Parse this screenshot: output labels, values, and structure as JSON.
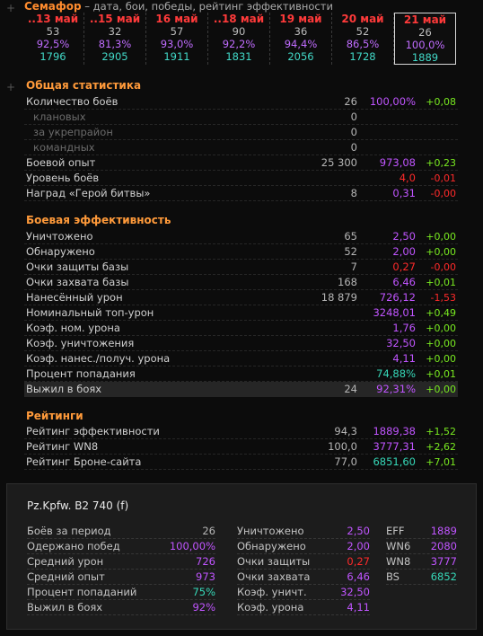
{
  "semafor": {
    "title": "Семафор",
    "desc": " – дата, бои, победы, рейтинг эффективности",
    "days": [
      {
        "date": "..13 май",
        "battles": "53",
        "wins": "92,5%",
        "eff": "1796"
      },
      {
        "date": "..15 май",
        "battles": "32",
        "wins": "81,3%",
        "eff": "2905"
      },
      {
        "date": "16 май",
        "battles": "57",
        "wins": "93,0%",
        "eff": "1911"
      },
      {
        "date": "..18 май",
        "battles": "90",
        "wins": "92,2%",
        "eff": "1831"
      },
      {
        "date": "19 май",
        "battles": "36",
        "wins": "94,4%",
        "eff": "2056"
      },
      {
        "date": "20 май",
        "battles": "52",
        "wins": "86,5%",
        "eff": "1728"
      },
      {
        "date": "21 май",
        "battles": "26",
        "wins": "100,0%",
        "eff": "1889"
      }
    ]
  },
  "general": {
    "title": "Общая статистика",
    "rows": [
      {
        "label": "Количество боёв",
        "value": "26",
        "avg": "100,00%",
        "avg_color": "purple",
        "delta": "+0,08",
        "delta_color": "green"
      },
      {
        "label": "клановых",
        "value": "0",
        "avg": "",
        "delta": "",
        "sub": true
      },
      {
        "label": "за укрепрайон",
        "value": "0",
        "avg": "",
        "delta": "",
        "sub": true
      },
      {
        "label": "командных",
        "value": "0",
        "avg": "",
        "delta": "",
        "sub": true
      },
      {
        "label": "Боевой опыт",
        "value": "25 300",
        "avg": "973,08",
        "avg_color": "purple",
        "delta": "+0,23",
        "delta_color": "green"
      },
      {
        "label": "Уровень боёв",
        "value": "",
        "avg": "4,0",
        "avg_color": "red",
        "delta": "-0,01",
        "delta_color": "red"
      },
      {
        "label": "Наград «Герой битвы»",
        "value": "8",
        "avg": "0,31",
        "avg_color": "purple",
        "delta": "-0,00",
        "delta_color": "red"
      }
    ]
  },
  "combat": {
    "title": "Боевая эффективность",
    "rows": [
      {
        "label": "Уничтожено",
        "value": "65",
        "avg": "2,50",
        "avg_color": "purple",
        "delta": "+0,00",
        "delta_color": "green"
      },
      {
        "label": "Обнаружено",
        "value": "52",
        "avg": "2,00",
        "avg_color": "purple",
        "delta": "+0,00",
        "delta_color": "green"
      },
      {
        "label": "Очки защиты базы",
        "value": "7",
        "avg": "0,27",
        "avg_color": "red",
        "delta": "-0,00",
        "delta_color": "red"
      },
      {
        "label": "Очки захвата базы",
        "value": "168",
        "avg": "6,46",
        "avg_color": "purple",
        "delta": "+0,01",
        "delta_color": "green"
      },
      {
        "label": "Нанесённый урон",
        "value": "18 879",
        "avg": "726,12",
        "avg_color": "purple",
        "delta": "-1,53",
        "delta_color": "red"
      },
      {
        "label": "Номинальный топ-урон",
        "value": "",
        "avg": "3248,01",
        "avg_color": "purple",
        "delta": "+0,49",
        "delta_color": "green"
      },
      {
        "label": "Коэф. ном. урона",
        "value": "",
        "avg": "1,76",
        "avg_color": "purple",
        "delta": "+0,00",
        "delta_color": "green"
      },
      {
        "label": "Коэф. уничтожения",
        "value": "",
        "avg": "32,50",
        "avg_color": "purple",
        "delta": "+0,00",
        "delta_color": "green"
      },
      {
        "label": "Коэф. нанес./получ. урона",
        "value": "",
        "avg": "4,11",
        "avg_color": "purple",
        "delta": "+0,00",
        "delta_color": "green"
      },
      {
        "label": "Процент попадания",
        "value": "",
        "avg": "74,88%",
        "avg_color": "teal",
        "delta": "+0,01",
        "delta_color": "green"
      },
      {
        "label": "Выжил в боях",
        "value": "24",
        "avg": "92,31%",
        "avg_color": "purple",
        "delta": "+0,00",
        "delta_color": "green",
        "hl": true
      }
    ]
  },
  "ratings": {
    "title": "Рейтинги",
    "rows": [
      {
        "label": "Рейтинг эффективности",
        "value": "94,3",
        "avg": "1889,38",
        "avg_color": "purple",
        "delta": "+1,52",
        "delta_color": "green"
      },
      {
        "label": "Рейтинг WN8",
        "value": "100,0",
        "avg": "3777,31",
        "avg_color": "purple",
        "delta": "+2,62",
        "delta_color": "green"
      },
      {
        "label": "Рейтинг Броне-сайта",
        "value": "77,0",
        "avg": "6851,60",
        "avg_color": "teal",
        "delta": "+7,01",
        "delta_color": "green"
      }
    ]
  },
  "tank": {
    "name": "Pz.Kpfw. B2 740 (f)",
    "col1": [
      {
        "label": "Боёв за период",
        "value": "26",
        "color": "gray"
      },
      {
        "label": "Одержано побед",
        "value": "100,00%",
        "color": "purple"
      },
      {
        "label": "Средний урон",
        "value": "726",
        "color": "purple"
      },
      {
        "label": "Средний опыт",
        "value": "973",
        "color": "purple"
      },
      {
        "label": "Процент попаданий",
        "value": "75%",
        "color": "teal"
      },
      {
        "label": "Выжил в боях",
        "value": "92%",
        "color": "purple"
      }
    ],
    "col2": [
      {
        "label": "Уничтожено",
        "value": "2,50",
        "color": "purple"
      },
      {
        "label": "Обнаружено",
        "value": "2,00",
        "color": "purple"
      },
      {
        "label": "Очки защиты",
        "value": "0,27",
        "color": "red"
      },
      {
        "label": "Очки захвата",
        "value": "6,46",
        "color": "purple"
      },
      {
        "label": "Коэф. уничт.",
        "value": "32,50",
        "color": "purple"
      },
      {
        "label": "Коэф. урона",
        "value": "4,11",
        "color": "purple"
      }
    ],
    "col3": [
      {
        "label": "EFF",
        "value": "1889",
        "color": "purple"
      },
      {
        "label": "WN6",
        "value": "2080",
        "color": "purple"
      },
      {
        "label": "WN8",
        "value": "3777",
        "color": "purple"
      },
      {
        "label": "BS",
        "value": "6852",
        "color": "teal"
      }
    ]
  }
}
